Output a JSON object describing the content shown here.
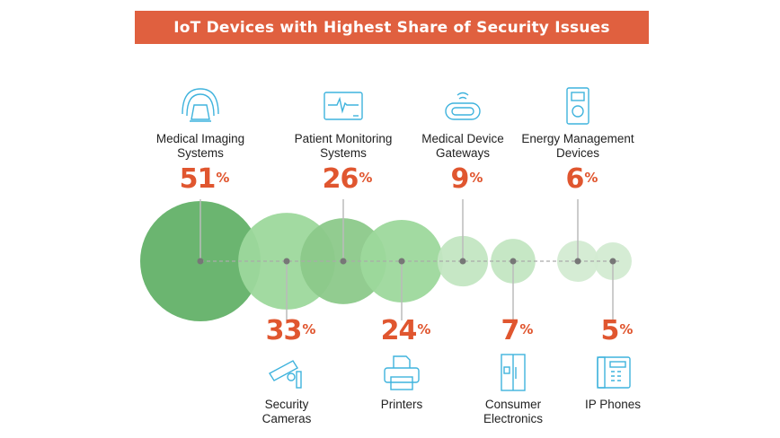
{
  "title": "IoT Devices with Highest Share of Security Issues",
  "chart_data": {
    "type": "bubble",
    "title": "IoT Devices with Highest Share of Security Issues",
    "unit": "%",
    "items": [
      {
        "label": "Medical Imaging Systems",
        "value": 51,
        "position": "top",
        "icon": "mri-scanner-icon",
        "color": "#63b168"
      },
      {
        "label": "Security Cameras",
        "value": 33,
        "position": "bottom",
        "icon": "security-camera-icon",
        "color": "#9dd89c"
      },
      {
        "label": "Patient Monitoring Systems",
        "value": 26,
        "position": "top",
        "icon": "heart-monitor-icon",
        "color": "#8cc98a"
      },
      {
        "label": "Printers",
        "value": 24,
        "position": "bottom",
        "icon": "printer-icon",
        "color": "#9dd89c"
      },
      {
        "label": "Medical Device Gateways",
        "value": 9,
        "position": "top",
        "icon": "wifi-gateway-icon",
        "color": "#c3e6c2"
      },
      {
        "label": "Consumer Electronics",
        "value": 7,
        "position": "bottom",
        "icon": "refrigerator-icon",
        "color": "#c3e6c2"
      },
      {
        "label": "Energy Management Devices",
        "value": 6,
        "position": "top",
        "icon": "smart-meter-icon",
        "color": "#d3ebd2"
      },
      {
        "label": "IP Phones",
        "value": 5,
        "position": "bottom",
        "icon": "desk-phone-icon",
        "color": "#d3ebd2"
      }
    ]
  }
}
